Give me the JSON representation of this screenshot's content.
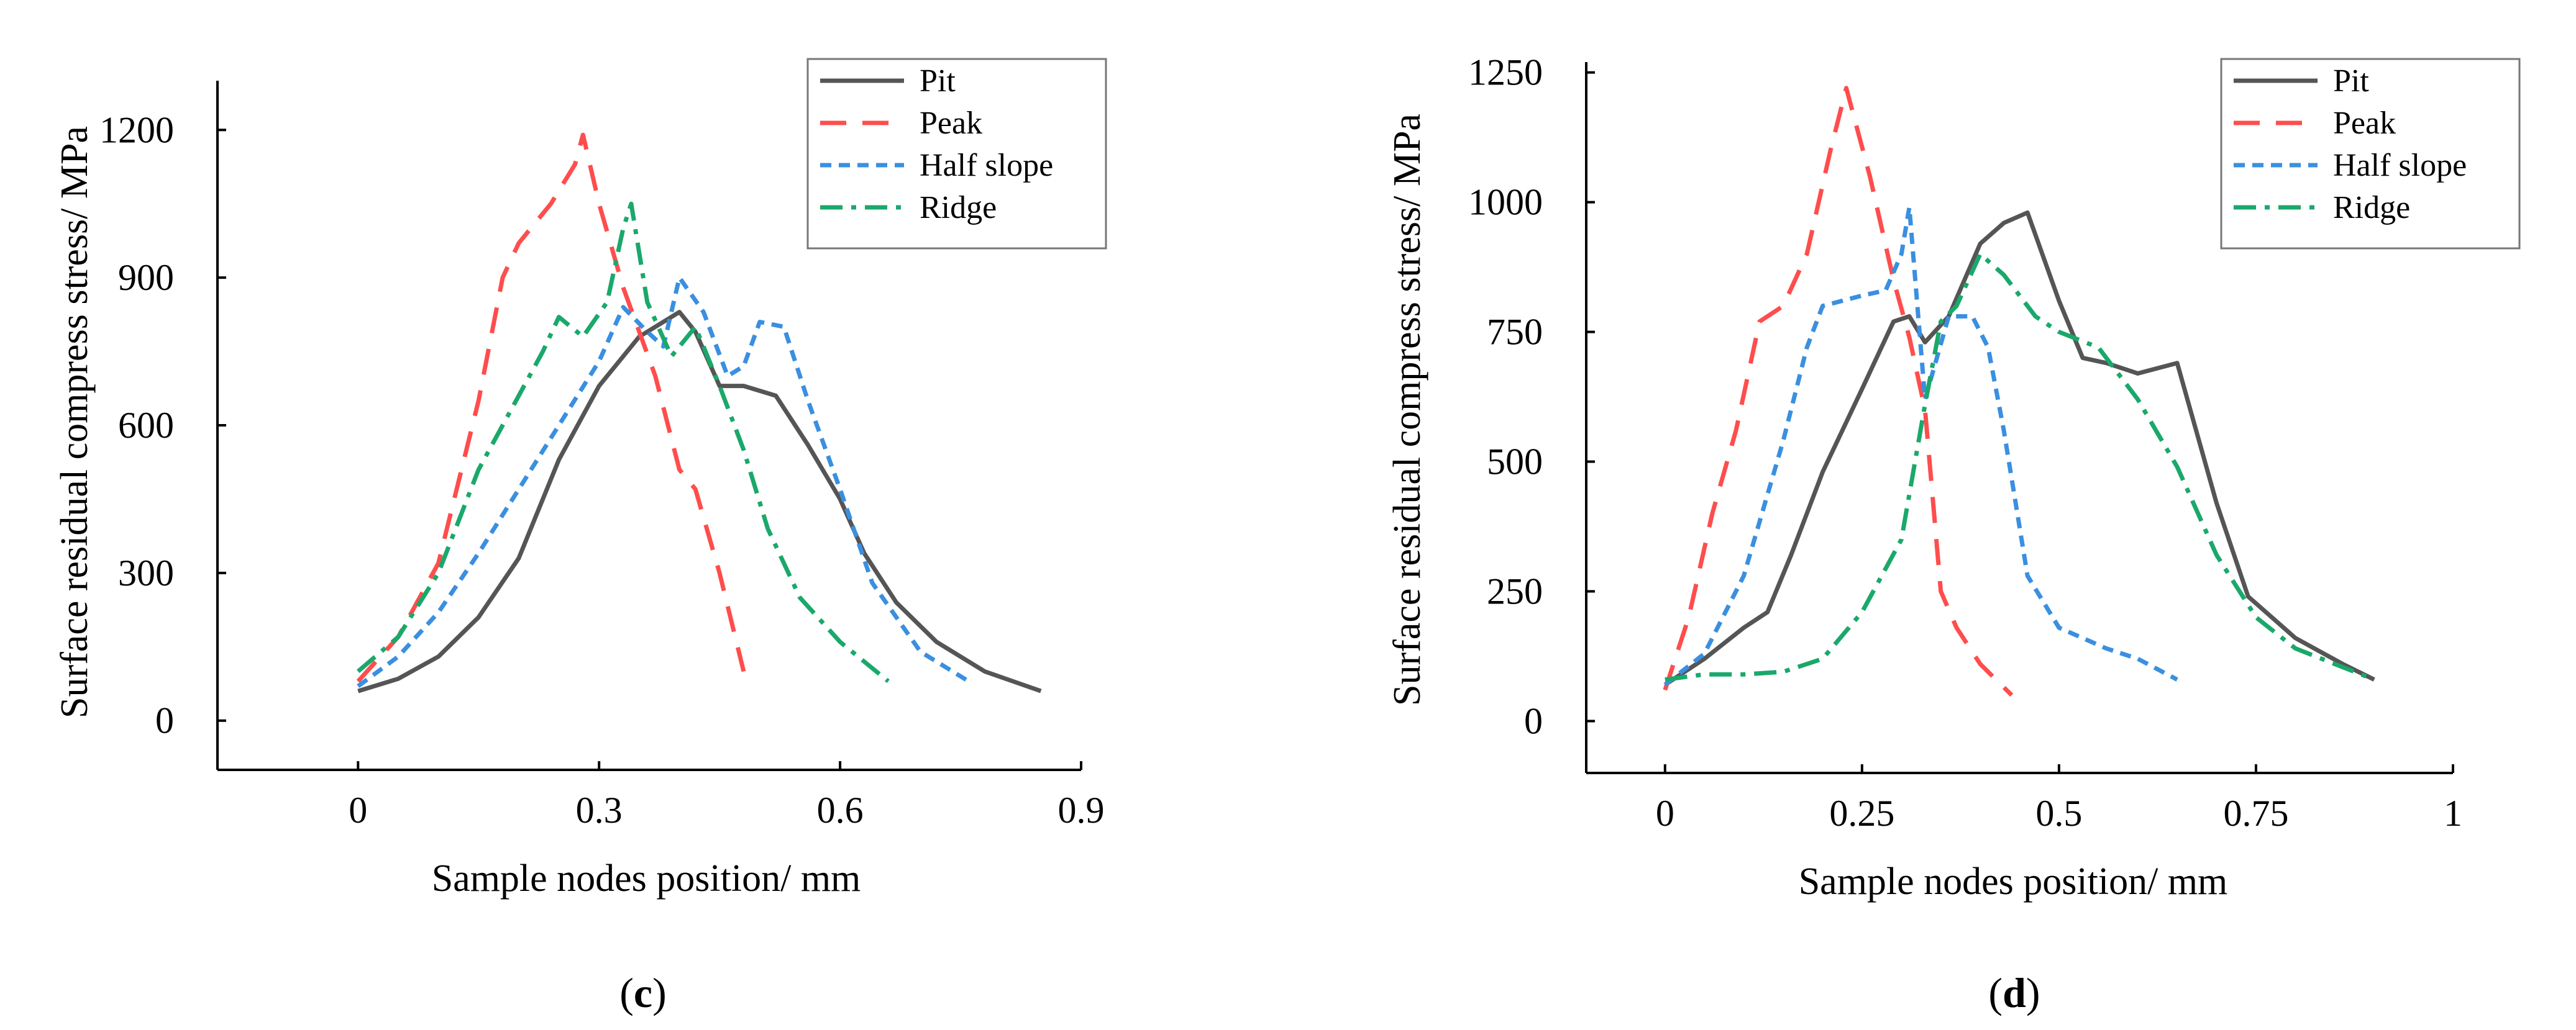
{
  "chart_data": [
    {
      "type": "line",
      "panel": "c",
      "caption": {
        "open": "(",
        "letter": "c",
        "close": ")"
      },
      "xlabel": "Sample nodes position/ mm",
      "ylabel": "Surface residual compress stress/ MPa",
      "xlim": [
        -0.175,
        0.9
      ],
      "ylim": [
        -100,
        1300
      ],
      "xticks": [
        0,
        0.3,
        0.6,
        0.9
      ],
      "xtick_labels": [
        "0",
        "0.3",
        "0.6",
        "0.9"
      ],
      "yticks": [
        0,
        300,
        600,
        900,
        1200
      ],
      "ytick_labels": [
        "0",
        "300",
        "600",
        "900",
        "1200"
      ],
      "series": [
        {
          "name": "Pit",
          "color": "#555555",
          "dash": "solid",
          "x": [
            0,
            0.05,
            0.1,
            0.15,
            0.2,
            0.25,
            0.3,
            0.35,
            0.38,
            0.4,
            0.42,
            0.45,
            0.48,
            0.52,
            0.56,
            0.6,
            0.63,
            0.67,
            0.72,
            0.78,
            0.85
          ],
          "y": [
            60,
            85,
            130,
            210,
            330,
            530,
            680,
            780,
            810,
            830,
            790,
            680,
            680,
            660,
            560,
            450,
            340,
            240,
            160,
            100,
            60
          ]
        },
        {
          "name": "Peak",
          "color": "#ff4d4d",
          "dash": "long",
          "x": [
            0,
            0.05,
            0.1,
            0.15,
            0.18,
            0.2,
            0.24,
            0.27,
            0.28,
            0.3,
            0.33,
            0.37,
            0.4,
            0.42,
            0.45,
            0.48
          ],
          "y": [
            80,
            170,
            320,
            650,
            900,
            970,
            1050,
            1130,
            1190,
            1050,
            880,
            700,
            510,
            470,
            300,
            100
          ]
        },
        {
          "name": "Half slope",
          "color": "#3a8fe0",
          "dash": "short",
          "x": [
            0,
            0.05,
            0.1,
            0.15,
            0.2,
            0.25,
            0.3,
            0.33,
            0.36,
            0.38,
            0.4,
            0.43,
            0.46,
            0.48,
            0.5,
            0.53,
            0.56,
            0.6,
            0.64,
            0.7,
            0.76
          ],
          "y": [
            70,
            130,
            220,
            340,
            470,
            600,
            730,
            840,
            790,
            760,
            900,
            830,
            700,
            720,
            810,
            800,
            650,
            470,
            280,
            140,
            80
          ]
        },
        {
          "name": "Ridge",
          "color": "#1aa86b",
          "dash": "dashdot",
          "x": [
            0,
            0.05,
            0.1,
            0.15,
            0.2,
            0.23,
            0.25,
            0.28,
            0.31,
            0.33,
            0.34,
            0.36,
            0.39,
            0.42,
            0.45,
            0.48,
            0.51,
            0.55,
            0.6,
            0.66
          ],
          "y": [
            100,
            170,
            300,
            510,
            660,
            750,
            820,
            780,
            850,
            1000,
            1050,
            850,
            740,
            800,
            680,
            550,
            390,
            250,
            160,
            80
          ]
        }
      ]
    },
    {
      "type": "line",
      "panel": "d",
      "caption": {
        "open": "(",
        "letter": "d",
        "close": ")"
      },
      "xlabel": "Sample nodes position/ mm",
      "ylabel": "Surface residual compress stress/ MPa",
      "xlim": [
        -0.1,
        1.0
      ],
      "ylim": [
        -100,
        1270
      ],
      "xticks": [
        0,
        0.25,
        0.5,
        0.75,
        1.0
      ],
      "xtick_labels": [
        "0",
        "0.25",
        "0.5",
        "0.75",
        "1"
      ],
      "yticks": [
        0,
        250,
        500,
        750,
        1000,
        1250
      ],
      "ytick_labels": [
        "0",
        "250",
        "500",
        "750",
        "1000",
        "1250"
      ],
      "series": [
        {
          "name": "Pit",
          "color": "#555555",
          "dash": "solid",
          "x": [
            0,
            0.05,
            0.1,
            0.13,
            0.16,
            0.2,
            0.25,
            0.29,
            0.31,
            0.33,
            0.36,
            0.4,
            0.43,
            0.46,
            0.5,
            0.53,
            0.56,
            0.6,
            0.65,
            0.7,
            0.74,
            0.8,
            0.86,
            0.9
          ],
          "y": [
            70,
            120,
            180,
            210,
            320,
            480,
            640,
            770,
            780,
            730,
            780,
            920,
            960,
            980,
            810,
            700,
            690,
            670,
            690,
            420,
            240,
            160,
            110,
            80
          ]
        },
        {
          "name": "Peak",
          "color": "#ff4d4d",
          "dash": "long",
          "x": [
            0,
            0.03,
            0.06,
            0.09,
            0.12,
            0.15,
            0.18,
            0.21,
            0.23,
            0.26,
            0.29,
            0.31,
            0.33,
            0.35,
            0.37,
            0.4,
            0.44
          ],
          "y": [
            60,
            200,
            400,
            560,
            770,
            800,
            900,
            1100,
            1220,
            1050,
            850,
            740,
            600,
            250,
            180,
            110,
            50
          ]
        },
        {
          "name": "Half slope",
          "color": "#3a8fe0",
          "dash": "short",
          "x": [
            0,
            0.05,
            0.1,
            0.15,
            0.18,
            0.2,
            0.25,
            0.28,
            0.3,
            0.31,
            0.33,
            0.36,
            0.39,
            0.41,
            0.43,
            0.46,
            0.5,
            0.56,
            0.6,
            0.65
          ],
          "y": [
            70,
            130,
            280,
            540,
            720,
            800,
            820,
            830,
            900,
            990,
            620,
            780,
            780,
            720,
            560,
            280,
            180,
            140,
            120,
            80
          ]
        },
        {
          "name": "Ridge",
          "color": "#1aa86b",
          "dash": "dashdot",
          "x": [
            0,
            0.05,
            0.1,
            0.15,
            0.2,
            0.25,
            0.3,
            0.33,
            0.35,
            0.37,
            0.4,
            0.43,
            0.47,
            0.5,
            0.55,
            0.6,
            0.65,
            0.7,
            0.75,
            0.8,
            0.85,
            0.9
          ],
          "y": [
            80,
            90,
            90,
            95,
            120,
            210,
            350,
            610,
            770,
            800,
            900,
            860,
            780,
            750,
            720,
            620,
            490,
            320,
            200,
            140,
            110,
            80
          ]
        }
      ]
    }
  ]
}
